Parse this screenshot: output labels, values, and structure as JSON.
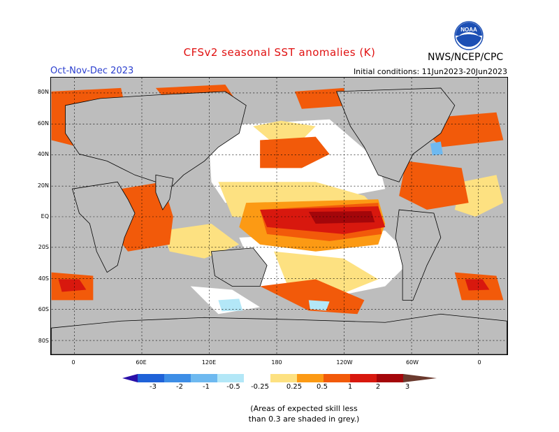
{
  "header": {
    "title": "CFSv2 seasonal SST anomalies (K)",
    "season": "Oct-Nov-Dec 2023",
    "organization": "NWS/NCEP/CPC",
    "initial_conditions": "Initial conditions: 11Jun2023-20Jun2023",
    "logo_text": "NOAA"
  },
  "map": {
    "lat_labels": [
      "80N",
      "60N",
      "40N",
      "20N",
      "EQ",
      "20S",
      "40S",
      "60S",
      "80S"
    ],
    "lon_labels": [
      "0",
      "60E",
      "120E",
      "180",
      "120W",
      "60W",
      "0"
    ]
  },
  "legend": {
    "ticks": [
      "-3",
      "-2",
      "-1",
      "-0.5",
      "-0.25",
      "0.25",
      "0.5",
      "1",
      "2",
      "3"
    ],
    "colors": [
      "#2a10a8",
      "#1f62d8",
      "#3d8ee6",
      "#6eb9f0",
      "#b3e7f7",
      "#ffffff",
      "#fde181",
      "#fc9a14",
      "#f25a0a",
      "#d8180e",
      "#a4060a",
      "#6b3a2e"
    ]
  },
  "footnote": {
    "line1": "(Areas of expected skill less",
    "line2": "than 0.3 are shaded in grey.)"
  }
}
